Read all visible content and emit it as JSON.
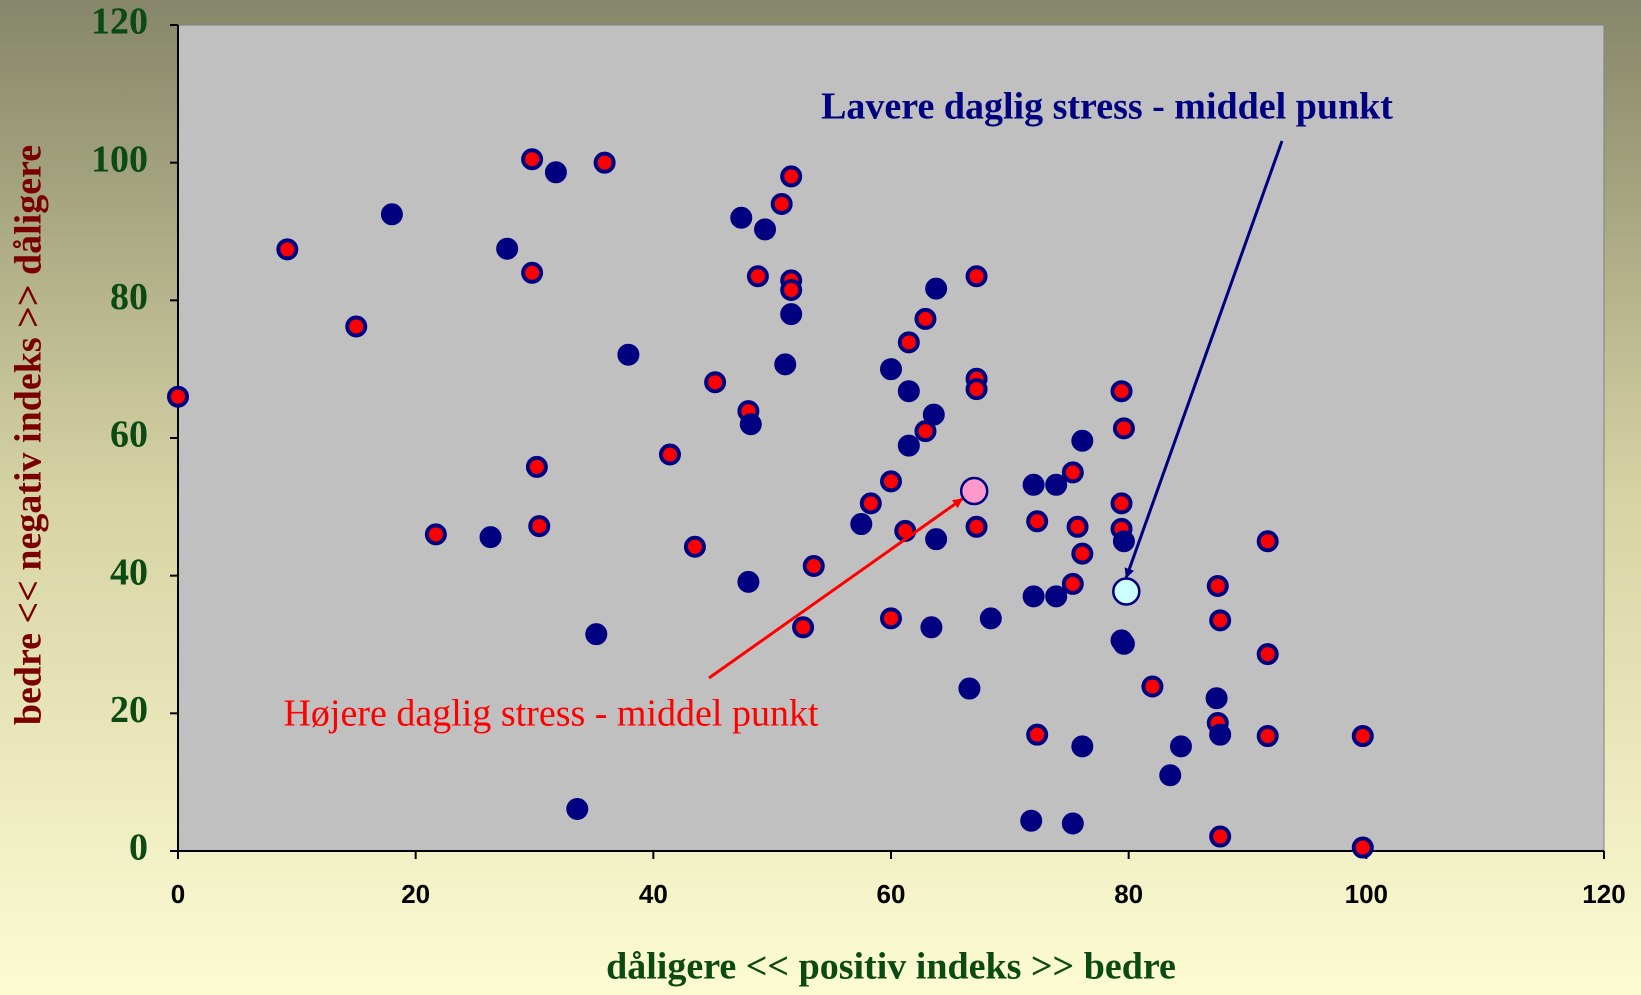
{
  "chart_data": {
    "type": "scatter",
    "xlabel": "dåligere << positiv indeks >> bedre",
    "ylabel": "bedre << negativ indeks >> dåligere",
    "xlim": [
      0,
      120
    ],
    "xticks": [
      0,
      20,
      40,
      60,
      80,
      100,
      120
    ],
    "ylim": [
      0,
      120
    ],
    "yticks": [
      0,
      20,
      40,
      60,
      80,
      100,
      120
    ],
    "series": [
      {
        "color": "#ff0000",
        "edgecolor": "#000080",
        "x": [
          0,
          9.2,
          15,
          21.7,
          29.8,
          29.8,
          30.2,
          30.4,
          35.9,
          41.4,
          43.5,
          45.2,
          48,
          48.8,
          50.8,
          51.6,
          51.6,
          51.6,
          52.6,
          53.5,
          58.3,
          60,
          60,
          61.2,
          61.5,
          62.9,
          62.9,
          67.2,
          67.2,
          67.2,
          67.2,
          72.3,
          72.3,
          75.3,
          75.3,
          75.7,
          76.1,
          79.4,
          79.4,
          79.4,
          79.4,
          79.6,
          82,
          87.5,
          87.7,
          87.5,
          87.7,
          91.7,
          91.7,
          91.7,
          99.7,
          99.7
        ],
        "values": [
          66,
          87.4,
          76.2,
          46,
          100.5,
          84,
          55.8,
          47.2,
          100,
          57.6,
          44.2,
          68.1,
          63.9,
          83.5,
          94,
          98,
          82.9,
          81.5,
          32.5,
          41.4,
          50.5,
          53.7,
          33.8,
          46.5,
          73.9,
          77.3,
          61,
          83.5,
          68.6,
          67.1,
          47.1,
          47.9,
          16.9,
          55,
          38.8,
          47.1,
          43.2,
          66.8,
          50.5,
          46.8,
          30.6,
          61.4,
          23.9,
          38.5,
          33.5,
          18.6,
          2.1,
          45,
          28.6,
          16.7,
          16.7,
          0.5
        ]
      },
      {
        "color": "#000080",
        "edgecolor": "#000080",
        "x": [
          18,
          26.3,
          27.7,
          31.8,
          33.6,
          35.2,
          37.9,
          47.4,
          48,
          48.2,
          49.4,
          51.1,
          51.6,
          57.5,
          60,
          61.5,
          61.5,
          63.4,
          63.6,
          63.8,
          63.8,
          66.6,
          68.4,
          71.8,
          72,
          72,
          73.9,
          73.9,
          75.3,
          76.1,
          76.1,
          79.6,
          79.6,
          83.5,
          84.4,
          87.4,
          87.7
        ],
        "values": [
          92.5,
          45.6,
          87.5,
          98.6,
          6.1,
          31.5,
          72.1,
          92,
          39.1,
          62,
          90.3,
          70.7,
          78,
          47.5,
          70,
          66.8,
          58.9,
          32.5,
          63.4,
          81.7,
          45.3,
          23.6,
          33.8,
          4.4,
          53.2,
          37,
          53.2,
          37,
          4,
          59.6,
          15.2,
          45,
          30.1,
          11,
          15.2,
          22.2,
          16.9
        ]
      }
    ],
    "annotations": [
      {
        "text": "Lavere daglig stress - middel punkt",
        "color": "#000080",
        "x": 79.8,
        "y": 37.7,
        "point_color": "#ccffff"
      },
      {
        "text": "Højere daglig stress - middel punkt",
        "color": "#ff0000",
        "x": 67,
        "y": 52.3,
        "point_color": "#ff99cc"
      }
    ]
  }
}
